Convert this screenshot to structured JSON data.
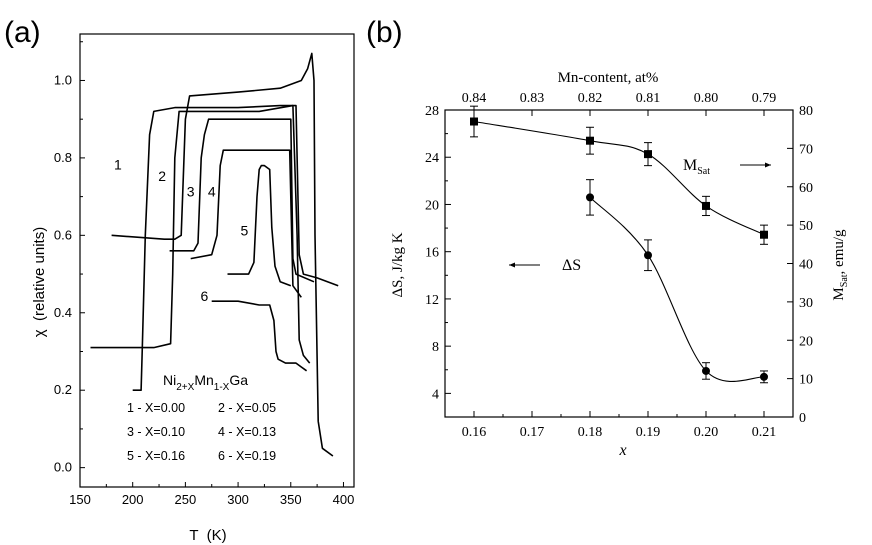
{
  "chart_data": [
    {
      "panel_label": "(a)",
      "type": "line",
      "xlabel": "T  (K)",
      "ylabel": "χ  (relative units)",
      "xlim": [
        150,
        410
      ],
      "ylim": [
        -0.05,
        1.12
      ],
      "xticks": [
        150,
        200,
        250,
        300,
        350,
        400
      ],
      "yticks": [
        0.0,
        0.2,
        0.4,
        0.6,
        0.8,
        1.0
      ],
      "ytick_labels": [
        "0.0",
        "0.2",
        "0.4",
        "0.6",
        "0.8",
        "1.0"
      ],
      "grid": false,
      "legend_title": {
        "base1": "Ni",
        "sub1": "2+X",
        "base2": "Mn",
        "sub2": "1-X",
        "base3": "Ga"
      },
      "legend_entries": [
        "1 - X=0.00",
        "2 - X=0.05",
        "3 - X=0.10",
        "4 - X=0.13",
        "5 - X=0.16",
        "6 - X=0.19"
      ],
      "series": [
        {
          "name": "1",
          "x": [
            200,
            208,
            209,
            212,
            216,
            220,
            240,
            300,
            340,
            352,
            356,
            358,
            362,
            368
          ],
          "y": [
            0.2,
            0.2,
            0.3,
            0.6,
            0.86,
            0.92,
            0.93,
            0.93,
            0.935,
            0.935,
            0.6,
            0.33,
            0.29,
            0.27
          ]
        },
        {
          "name": "2",
          "x": [
            160,
            220,
            236,
            238,
            240,
            244,
            260,
            320,
            352,
            355,
            358,
            362,
            375,
            395
          ],
          "y": [
            0.31,
            0.31,
            0.32,
            0.5,
            0.8,
            0.92,
            0.92,
            0.92,
            0.935,
            0.935,
            0.55,
            0.5,
            0.49,
            0.47
          ]
        },
        {
          "name": "",
          "x": [
            180,
            230,
            240,
            246,
            250,
            254,
            300,
            340,
            360,
            366,
            370,
            372,
            373,
            376,
            380,
            390
          ],
          "y": [
            0.6,
            0.59,
            0.59,
            0.6,
            0.9,
            0.96,
            0.97,
            0.98,
            1.0,
            1.03,
            1.07,
            1.0,
            0.6,
            0.12,
            0.05,
            0.03
          ]
        },
        {
          "name": "3",
          "x": [
            235,
            258,
            262,
            265,
            268,
            272,
            300,
            330,
            345,
            350,
            352,
            355,
            372
          ],
          "y": [
            0.56,
            0.56,
            0.58,
            0.8,
            0.86,
            0.9,
            0.9,
            0.9,
            0.9,
            0.9,
            0.54,
            0.5,
            0.48
          ]
        },
        {
          "name": "4",
          "x": [
            255,
            275,
            280,
            283,
            286,
            290,
            320,
            340,
            345,
            349,
            352,
            360
          ],
          "y": [
            0.54,
            0.55,
            0.6,
            0.78,
            0.82,
            0.82,
            0.82,
            0.82,
            0.82,
            0.82,
            0.47,
            0.44
          ]
        },
        {
          "name": "5",
          "x": [
            290,
            310,
            315,
            318,
            320,
            322,
            325,
            330,
            332,
            335,
            340,
            350
          ],
          "y": [
            0.5,
            0.5,
            0.53,
            0.7,
            0.77,
            0.78,
            0.78,
            0.77,
            0.62,
            0.52,
            0.48,
            0.47
          ]
        },
        {
          "name": "6",
          "x": [
            275,
            300,
            320,
            330,
            334,
            336,
            338,
            345,
            355,
            360,
            365
          ],
          "y": [
            0.43,
            0.43,
            0.42,
            0.42,
            0.38,
            0.3,
            0.28,
            0.27,
            0.27,
            0.26,
            0.25
          ]
        }
      ],
      "curve_labels": [
        {
          "text": "1",
          "x": 186,
          "y": 0.77
        },
        {
          "text": "2",
          "x": 228,
          "y": 0.74
        },
        {
          "text": "3",
          "x": 255,
          "y": 0.7
        },
        {
          "text": "4",
          "x": 275,
          "y": 0.7
        },
        {
          "text": "5",
          "x": 306,
          "y": 0.6
        },
        {
          "text": "6",
          "x": 268,
          "y": 0.43
        }
      ]
    },
    {
      "panel_label": "(b)",
      "type": "scatter",
      "xlabel": "x",
      "ylabel_left": "ΔS, J/kg K",
      "ylabel_right": {
        "base": "M",
        "sub": "Sat",
        "rest": ", emu/g"
      },
      "top_label": "Mn-content, at%",
      "xlim": [
        0.155,
        0.215
      ],
      "ylim_left": [
        2,
        28
      ],
      "ylim_right": [
        0,
        80
      ],
      "xticks": [
        0.16,
        0.17,
        0.18,
        0.19,
        0.2,
        0.21
      ],
      "xtick_labels": [
        "0.16",
        "0.17",
        "0.18",
        "0.19",
        "0.20",
        "0.21"
      ],
      "yticks_left": [
        4,
        8,
        12,
        16,
        20,
        24,
        28
      ],
      "yticks_right": [
        0,
        10,
        20,
        30,
        40,
        50,
        60,
        70,
        80
      ],
      "top_ticks": [
        0.16,
        0.17,
        0.18,
        0.19,
        0.2,
        0.21
      ],
      "top_tick_labels": [
        "0.84",
        "0.83",
        "0.82",
        "0.81",
        "0.80",
        "0.79"
      ],
      "grid": false,
      "series": [
        {
          "name": "M",
          "name_sub": "Sat",
          "marker": "square",
          "axis": "right",
          "x": [
            0.16,
            0.18,
            0.19,
            0.2,
            0.21
          ],
          "y": [
            77,
            72,
            68.5,
            55,
            47.5
          ],
          "err": [
            4,
            3.5,
            3,
            2.5,
            2.5
          ]
        },
        {
          "name": "ΔS",
          "marker": "circle",
          "axis": "left",
          "x": [
            0.18,
            0.19,
            0.2,
            0.21
          ],
          "y": [
            20.6,
            15.7,
            5.9,
            5.4
          ],
          "err": [
            1.5,
            1.3,
            0.7,
            0.5
          ]
        }
      ],
      "annotations": [
        {
          "text": "ΔS",
          "arrow": "left"
        },
        {
          "text": "M",
          "sub": "Sat",
          "arrow": "right"
        }
      ]
    }
  ]
}
